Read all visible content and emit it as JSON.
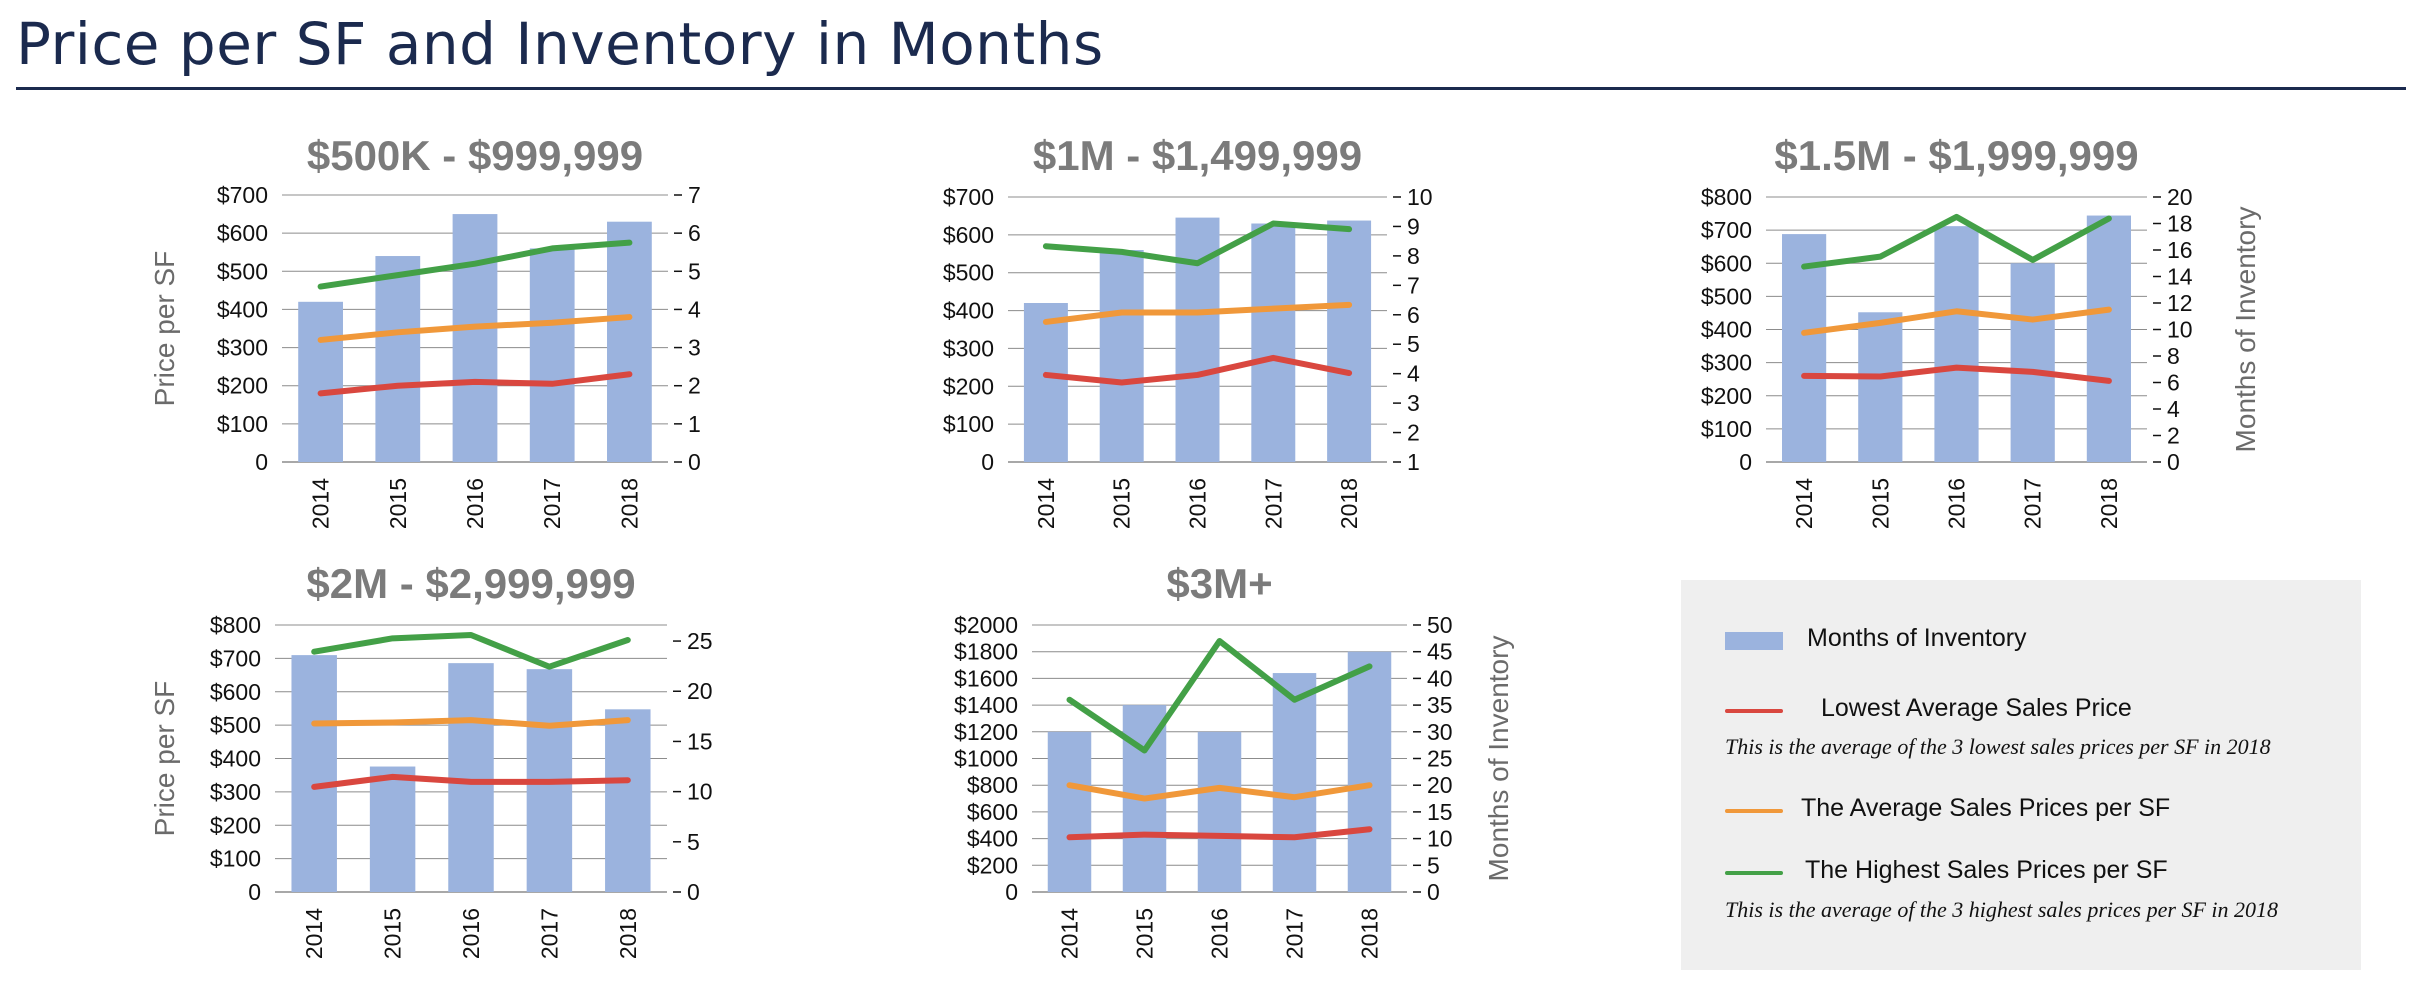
{
  "page": {
    "title": "Price per SF and Inventory in Months"
  },
  "colors": {
    "bar": "#9bb3de",
    "lowest": "#d9473f",
    "average": "#f0983a",
    "highest": "#43a047",
    "title_text": "#1b2a4e",
    "chart_title": "#7b7b7b",
    "axis_title": "#6b6b6b",
    "grid": "#8c8c8c"
  },
  "legend": {
    "inventory_label": "Months of Inventory",
    "lowest_label": "Lowest Average Sales Price",
    "lowest_note": "This is the average of the 3 lowest  sales prices per SF in 2018",
    "average_label": "The Average Sales Prices per SF",
    "highest_label": "The Highest Sales Prices per SF",
    "highest_note": "This is the average of the 3 highest  sales prices per SF in 2018"
  },
  "chart_data": [
    {
      "type": "bar",
      "title": "$500K - $999,999",
      "categories": [
        "2014",
        "2015",
        "2016",
        "2017",
        "2018"
      ],
      "ylabel": "Price per SF",
      "y2label": "",
      "ylim": [
        0,
        700
      ],
      "y2lim": [
        0,
        7
      ],
      "yticks": [
        "0",
        "$100",
        "$200",
        "$300",
        "$400",
        "$500",
        "$600",
        "$700"
      ],
      "y2ticks": [
        "0",
        "1",
        "2",
        "3",
        "4",
        "5",
        "6",
        "7"
      ],
      "series": [
        {
          "name": "Months of Inventory",
          "kind": "bar",
          "axis": "right",
          "values": [
            4.2,
            5.4,
            6.5,
            5.6,
            6.3
          ]
        },
        {
          "name": "Lowest Average Sales Price",
          "kind": "line",
          "axis": "left",
          "color": "#d9473f",
          "values": [
            180,
            200,
            210,
            205,
            230
          ]
        },
        {
          "name": "The Average Sales Prices per SF",
          "kind": "line",
          "axis": "left",
          "color": "#f0983a",
          "values": [
            320,
            340,
            355,
            365,
            380
          ]
        },
        {
          "name": "The Highest Sales Prices per SF",
          "kind": "line",
          "axis": "left",
          "color": "#43a047",
          "values": [
            460,
            490,
            520,
            560,
            575
          ]
        }
      ]
    },
    {
      "type": "bar",
      "title": "$1M - $1,499,999",
      "categories": [
        "2014",
        "2015",
        "2016",
        "2017",
        "2018"
      ],
      "ylabel": "",
      "y2label": "",
      "ylim": [
        0,
        700
      ],
      "y2lim": [
        1,
        10
      ],
      "yticks": [
        "0",
        "$100",
        "$200",
        "$300",
        "$400",
        "$500",
        "$600",
        "$700"
      ],
      "y2ticks": [
        "1",
        "2",
        "3",
        "4",
        "5",
        "6",
        "7",
        "8",
        "9",
        "10"
      ],
      "series": [
        {
          "name": "Months of Inventory",
          "kind": "bar",
          "axis": "right",
          "values": [
            6.4,
            8.2,
            9.3,
            9.1,
            9.2
          ]
        },
        {
          "name": "Lowest Average Sales Price",
          "kind": "line",
          "axis": "left",
          "color": "#d9473f",
          "values": [
            230,
            210,
            230,
            275,
            235
          ]
        },
        {
          "name": "The Average Sales Prices per SF",
          "kind": "line",
          "axis": "left",
          "color": "#f0983a",
          "values": [
            370,
            395,
            395,
            405,
            415
          ]
        },
        {
          "name": "The Highest Sales Prices per SF",
          "kind": "line",
          "axis": "left",
          "color": "#43a047",
          "values": [
            570,
            555,
            525,
            630,
            615
          ]
        }
      ]
    },
    {
      "type": "bar",
      "title": "$1.5M - $1,999,999",
      "categories": [
        "2014",
        "2015",
        "2016",
        "2017",
        "2018"
      ],
      "ylabel": "",
      "y2label": "Months of Inventory",
      "ylim": [
        0,
        800
      ],
      "y2lim": [
        0,
        20
      ],
      "yticks": [
        "0",
        "$100",
        "$200",
        "$300",
        "$400",
        "$500",
        "$600",
        "$700",
        "$800"
      ],
      "y2ticks": [
        "0",
        "2",
        "4",
        "6",
        "8",
        "10",
        "12",
        "14",
        "16",
        "18",
        "20"
      ],
      "series": [
        {
          "name": "Months of Inventory",
          "kind": "bar",
          "axis": "right",
          "values": [
            17.2,
            11.3,
            17.8,
            15.0,
            18.6
          ]
        },
        {
          "name": "Lowest Average Sales Price",
          "kind": "line",
          "axis": "left",
          "color": "#d9473f",
          "values": [
            260,
            258,
            285,
            272,
            245
          ]
        },
        {
          "name": "The Average Sales Prices per SF",
          "kind": "line",
          "axis": "left",
          "color": "#f0983a",
          "values": [
            390,
            420,
            455,
            430,
            460
          ]
        },
        {
          "name": "The Highest Sales Prices per SF",
          "kind": "line",
          "axis": "left",
          "color": "#43a047",
          "values": [
            590,
            620,
            740,
            610,
            735
          ]
        }
      ]
    },
    {
      "type": "bar",
      "title": "$2M - $2,999,999",
      "categories": [
        "2014",
        "2015",
        "2016",
        "2017",
        "2018"
      ],
      "ylabel": "Price per SF",
      "y2label": "",
      "ylim": [
        0,
        800
      ],
      "y2lim": [
        0,
        26.6
      ],
      "yticks": [
        "0",
        "$100",
        "$200",
        "$300",
        "$400",
        "$500",
        "$600",
        "$700",
        "$800"
      ],
      "y2ticks": [
        "0",
        "5",
        "10",
        "15",
        "20",
        "25"
      ],
      "y2tickvals": [
        0,
        5,
        10,
        15,
        20,
        25
      ],
      "series": [
        {
          "name": "Months of Inventory",
          "kind": "bar",
          "axis": "right",
          "values": [
            23.6,
            12.5,
            22.8,
            22.2,
            18.2
          ]
        },
        {
          "name": "Lowest Average Sales Price",
          "kind": "line",
          "axis": "left",
          "color": "#d9473f",
          "values": [
            315,
            345,
            330,
            330,
            335
          ]
        },
        {
          "name": "The Average Sales Prices per SF",
          "kind": "line",
          "axis": "left",
          "color": "#f0983a",
          "values": [
            505,
            508,
            515,
            498,
            515
          ]
        },
        {
          "name": "The Highest Sales Prices per SF",
          "kind": "line",
          "axis": "left",
          "color": "#43a047",
          "values": [
            720,
            760,
            770,
            675,
            755
          ]
        }
      ]
    },
    {
      "type": "bar",
      "title": "$3M+",
      "categories": [
        "2014",
        "2015",
        "2016",
        "2017",
        "2018"
      ],
      "ylabel": "",
      "y2label": "Months of Inventory",
      "ylim": [
        0,
        2000
      ],
      "y2lim": [
        0,
        50
      ],
      "yticks": [
        "0",
        "$200",
        "$400",
        "$600",
        "$800",
        "$1000",
        "$1200",
        "$1400",
        "$1600",
        "$1800",
        "$2000"
      ],
      "y2ticks": [
        "0",
        "5",
        "10",
        "15",
        "20",
        "25",
        "30",
        "35",
        "40",
        "45",
        "50"
      ],
      "series": [
        {
          "name": "Months of Inventory",
          "kind": "bar",
          "axis": "right",
          "values": [
            30,
            35,
            30,
            41,
            45
          ]
        },
        {
          "name": "Lowest Average Sales Price",
          "kind": "line",
          "axis": "left",
          "color": "#d9473f",
          "values": [
            410,
            430,
            420,
            410,
            470
          ]
        },
        {
          "name": "The Average Sales Prices per SF",
          "kind": "line",
          "axis": "left",
          "color": "#f0983a",
          "values": [
            800,
            700,
            780,
            710,
            800
          ]
        },
        {
          "name": "The Highest Sales Prices per SF",
          "kind": "line",
          "axis": "left",
          "color": "#43a047",
          "values": [
            1440,
            1060,
            1880,
            1440,
            1690
          ]
        }
      ]
    }
  ]
}
